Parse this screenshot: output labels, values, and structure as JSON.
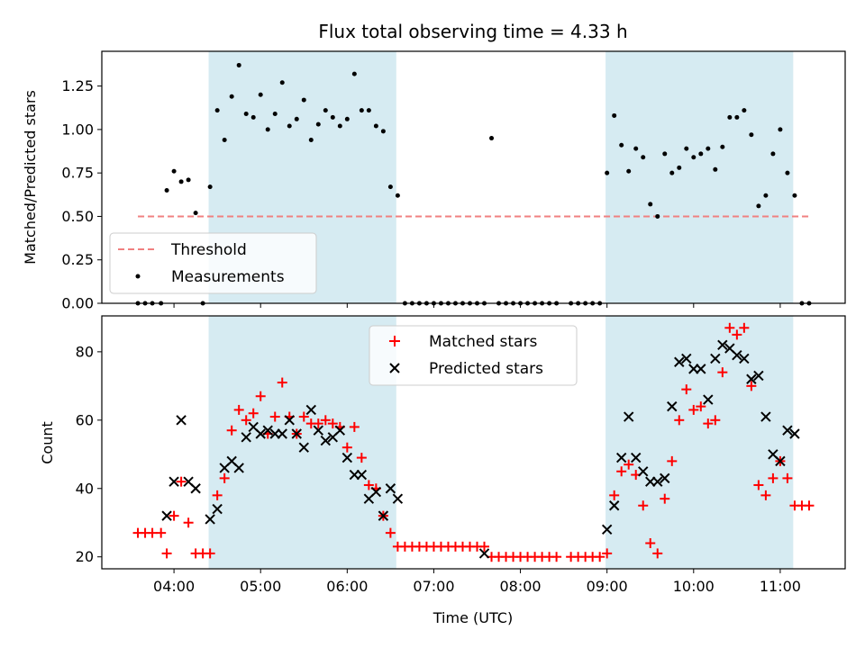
{
  "chart_data": [
    {
      "type": "scatter",
      "title": "Flux total observing time = 4.33 h",
      "xlabel": "",
      "ylabel": "Matched/Predicted stars",
      "ylim": [
        0,
        1.45
      ],
      "yticks": [
        "0.00",
        "0.25",
        "0.50",
        "0.75",
        "1.00",
        "1.25"
      ],
      "shaded_intervals": [
        [
          "04:24",
          "06:34"
        ],
        [
          "08:59",
          "11:09"
        ]
      ],
      "threshold": {
        "name": "Threshold",
        "value": 0.5,
        "x_range": [
          "03:35",
          "11:20"
        ],
        "color": "#f08080",
        "style": "dashed"
      },
      "legend": {
        "entries": [
          "Threshold",
          "Measurements"
        ],
        "location": "lower-left"
      },
      "series": [
        {
          "name": "Measurements",
          "color": "#000000",
          "points": [
            [
              "03:35",
              0
            ],
            [
              "03:40",
              0
            ],
            [
              "03:45",
              0
            ],
            [
              "03:51",
              0
            ],
            [
              "03:55",
              0.65
            ],
            [
              "04:00",
              0.76
            ],
            [
              "04:05",
              0.7
            ],
            [
              "04:10",
              0.71
            ],
            [
              "04:15",
              0.52
            ],
            [
              "04:20",
              0
            ],
            [
              "04:25",
              0.67
            ],
            [
              "04:30",
              1.11
            ],
            [
              "04:35",
              0.94
            ],
            [
              "04:40",
              1.19
            ],
            [
              "04:45",
              1.37
            ],
            [
              "04:50",
              1.09
            ],
            [
              "04:55",
              1.07
            ],
            [
              "05:00",
              1.2
            ],
            [
              "05:05",
              1.0
            ],
            [
              "05:10",
              1.09
            ],
            [
              "05:15",
              1.27
            ],
            [
              "05:20",
              1.02
            ],
            [
              "05:25",
              1.06
            ],
            [
              "05:30",
              1.17
            ],
            [
              "05:35",
              0.94
            ],
            [
              "05:40",
              1.03
            ],
            [
              "05:45",
              1.11
            ],
            [
              "05:50",
              1.07
            ],
            [
              "05:55",
              1.02
            ],
            [
              "06:00",
              1.06
            ],
            [
              "06:05",
              1.32
            ],
            [
              "06:10",
              1.11
            ],
            [
              "06:15",
              1.11
            ],
            [
              "06:20",
              1.02
            ],
            [
              "06:25",
              0.99
            ],
            [
              "06:30",
              0.67
            ],
            [
              "06:35",
              0.62
            ],
            [
              "06:40",
              0
            ],
            [
              "06:45",
              0
            ],
            [
              "06:50",
              0
            ],
            [
              "06:55",
              0
            ],
            [
              "07:00",
              0
            ],
            [
              "07:05",
              0
            ],
            [
              "07:10",
              0
            ],
            [
              "07:15",
              0
            ],
            [
              "07:20",
              0
            ],
            [
              "07:25",
              0
            ],
            [
              "07:30",
              0
            ],
            [
              "07:35",
              0
            ],
            [
              "07:40",
              0.95
            ],
            [
              "07:45",
              0
            ],
            [
              "07:50",
              0
            ],
            [
              "07:55",
              0
            ],
            [
              "08:00",
              0
            ],
            [
              "08:05",
              0
            ],
            [
              "08:10",
              0
            ],
            [
              "08:15",
              0
            ],
            [
              "08:20",
              0
            ],
            [
              "08:25",
              0
            ],
            [
              "08:35",
              0
            ],
            [
              "08:40",
              0
            ],
            [
              "08:45",
              0
            ],
            [
              "08:50",
              0
            ],
            [
              "08:55",
              0
            ],
            [
              "09:00",
              0.75
            ],
            [
              "09:05",
              1.08
            ],
            [
              "09:10",
              0.91
            ],
            [
              "09:15",
              0.76
            ],
            [
              "09:20",
              0.89
            ],
            [
              "09:25",
              0.84
            ],
            [
              "09:30",
              0.57
            ],
            [
              "09:35",
              0.5
            ],
            [
              "09:40",
              0.86
            ],
            [
              "09:45",
              0.75
            ],
            [
              "09:50",
              0.78
            ],
            [
              "09:55",
              0.89
            ],
            [
              "10:00",
              0.84
            ],
            [
              "10:05",
              0.86
            ],
            [
              "10:10",
              0.89
            ],
            [
              "10:15",
              0.77
            ],
            [
              "10:20",
              0.9
            ],
            [
              "10:25",
              1.07
            ],
            [
              "10:30",
              1.07
            ],
            [
              "10:35",
              1.11
            ],
            [
              "10:40",
              0.97
            ],
            [
              "10:45",
              0.56
            ],
            [
              "10:50",
              0.62
            ],
            [
              "10:55",
              0.86
            ],
            [
              "11:00",
              1.0
            ],
            [
              "11:05",
              0.75
            ],
            [
              "11:10",
              0.62
            ],
            [
              "11:15",
              0
            ],
            [
              "11:20",
              0
            ]
          ]
        }
      ]
    },
    {
      "type": "scatter",
      "title": "",
      "xlabel": "Time (UTC)",
      "ylabel": "Count",
      "ylim": [
        16.5,
        90.5
      ],
      "yticks": [
        "20",
        "40",
        "60",
        "80"
      ],
      "xticks": [
        "04:00",
        "05:00",
        "06:00",
        "07:00",
        "08:00",
        "09:00",
        "10:00",
        "11:00"
      ],
      "xlim": [
        "03:10",
        "11:45"
      ],
      "shaded_intervals": [
        [
          "04:24",
          "06:34"
        ],
        [
          "08:59",
          "11:09"
        ]
      ],
      "legend": {
        "entries": [
          "Matched stars",
          "Predicted stars"
        ],
        "location": "upper-center"
      },
      "series": [
        {
          "name": "Matched stars",
          "marker": "plus",
          "color": "#ff0000",
          "points": [
            [
              "03:35",
              27
            ],
            [
              "03:40",
              27
            ],
            [
              "03:45",
              27
            ],
            [
              "03:51",
              27
            ],
            [
              "03:55",
              21
            ],
            [
              "04:00",
              32
            ],
            [
              "04:05",
              42
            ],
            [
              "04:10",
              30
            ],
            [
              "04:15",
              21
            ],
            [
              "04:20",
              21
            ],
            [
              "04:25",
              21
            ],
            [
              "04:30",
              38
            ],
            [
              "04:35",
              43
            ],
            [
              "04:40",
              57
            ],
            [
              "04:45",
              63
            ],
            [
              "04:50",
              60
            ],
            [
              "04:55",
              62
            ],
            [
              "05:00",
              67
            ],
            [
              "05:05",
              56
            ],
            [
              "05:10",
              61
            ],
            [
              "05:15",
              71
            ],
            [
              "05:20",
              61
            ],
            [
              "05:25",
              56
            ],
            [
              "05:30",
              61
            ],
            [
              "05:35",
              59
            ],
            [
              "05:40",
              59
            ],
            [
              "05:45",
              60
            ],
            [
              "05:50",
              59
            ],
            [
              "05:55",
              58
            ],
            [
              "06:00",
              52
            ],
            [
              "06:05",
              58
            ],
            [
              "06:10",
              49
            ],
            [
              "06:15",
              41
            ],
            [
              "06:20",
              40
            ],
            [
              "06:25",
              32
            ],
            [
              "06:30",
              27
            ],
            [
              "06:35",
              23
            ],
            [
              "06:40",
              23
            ],
            [
              "06:45",
              23
            ],
            [
              "06:50",
              23
            ],
            [
              "06:55",
              23
            ],
            [
              "07:00",
              23
            ],
            [
              "07:05",
              23
            ],
            [
              "07:10",
              23
            ],
            [
              "07:15",
              23
            ],
            [
              "07:20",
              23
            ],
            [
              "07:25",
              23
            ],
            [
              "07:30",
              23
            ],
            [
              "07:35",
              23
            ],
            [
              "07:40",
              20
            ],
            [
              "07:45",
              20
            ],
            [
              "07:50",
              20
            ],
            [
              "07:55",
              20
            ],
            [
              "08:00",
              20
            ],
            [
              "08:05",
              20
            ],
            [
              "08:10",
              20
            ],
            [
              "08:15",
              20
            ],
            [
              "08:20",
              20
            ],
            [
              "08:25",
              20
            ],
            [
              "08:35",
              20
            ],
            [
              "08:40",
              20
            ],
            [
              "08:45",
              20
            ],
            [
              "08:50",
              20
            ],
            [
              "08:55",
              20
            ],
            [
              "09:00",
              21
            ],
            [
              "09:05",
              38
            ],
            [
              "09:10",
              45
            ],
            [
              "09:15",
              47
            ],
            [
              "09:20",
              44
            ],
            [
              "09:25",
              35
            ],
            [
              "09:30",
              24
            ],
            [
              "09:35",
              21
            ],
            [
              "09:40",
              37
            ],
            [
              "09:45",
              48
            ],
            [
              "09:50",
              60
            ],
            [
              "09:55",
              69
            ],
            [
              "10:00",
              63
            ],
            [
              "10:05",
              64
            ],
            [
              "10:10",
              59
            ],
            [
              "10:15",
              60
            ],
            [
              "10:20",
              74
            ],
            [
              "10:25",
              87
            ],
            [
              "10:30",
              85
            ],
            [
              "10:35",
              87
            ],
            [
              "10:40",
              70
            ],
            [
              "10:45",
              41
            ],
            [
              "10:50",
              38
            ],
            [
              "10:55",
              43
            ],
            [
              "11:00",
              48
            ],
            [
              "11:05",
              43
            ],
            [
              "11:10",
              35
            ],
            [
              "11:15",
              35
            ],
            [
              "11:20",
              35
            ]
          ]
        },
        {
          "name": "Predicted stars",
          "marker": "x",
          "color": "#000000",
          "points": [
            [
              "03:55",
              32
            ],
            [
              "04:00",
              42
            ],
            [
              "04:05",
              60
            ],
            [
              "04:10",
              42
            ],
            [
              "04:15",
              40
            ],
            [
              "04:25",
              31
            ],
            [
              "04:30",
              34
            ],
            [
              "04:35",
              46
            ],
            [
              "04:40",
              48
            ],
            [
              "04:45",
              46
            ],
            [
              "04:50",
              55
            ],
            [
              "04:55",
              58
            ],
            [
              "05:00",
              56
            ],
            [
              "05:05",
              57
            ],
            [
              "05:10",
              56
            ],
            [
              "05:15",
              56
            ],
            [
              "05:20",
              60
            ],
            [
              "05:25",
              56
            ],
            [
              "05:30",
              52
            ],
            [
              "05:35",
              63
            ],
            [
              "05:40",
              57
            ],
            [
              "05:45",
              54
            ],
            [
              "05:50",
              55
            ],
            [
              "05:55",
              57
            ],
            [
              "06:00",
              49
            ],
            [
              "06:05",
              44
            ],
            [
              "06:10",
              44
            ],
            [
              "06:15",
              37
            ],
            [
              "06:20",
              39
            ],
            [
              "06:25",
              32
            ],
            [
              "06:30",
              40
            ],
            [
              "06:35",
              37
            ],
            [
              "07:35",
              21
            ],
            [
              "09:00",
              28
            ],
            [
              "09:05",
              35
            ],
            [
              "09:10",
              49
            ],
            [
              "09:15",
              61
            ],
            [
              "09:20",
              49
            ],
            [
              "09:25",
              45
            ],
            [
              "09:30",
              42
            ],
            [
              "09:35",
              42
            ],
            [
              "09:40",
              43
            ],
            [
              "09:45",
              64
            ],
            [
              "09:50",
              77
            ],
            [
              "09:55",
              78
            ],
            [
              "10:00",
              75
            ],
            [
              "10:05",
              75
            ],
            [
              "10:10",
              66
            ],
            [
              "10:15",
              78
            ],
            [
              "10:20",
              82
            ],
            [
              "10:25",
              81
            ],
            [
              "10:30",
              79
            ],
            [
              "10:35",
              78
            ],
            [
              "10:40",
              72
            ],
            [
              "10:45",
              73
            ],
            [
              "10:50",
              61
            ],
            [
              "10:55",
              50
            ],
            [
              "11:00",
              48
            ],
            [
              "11:05",
              57
            ],
            [
              "11:10",
              56
            ]
          ]
        }
      ]
    }
  ],
  "colors": {
    "shade": "#add8e6",
    "threshold": "#f08080",
    "matched": "#ff0000",
    "predicted": "#000000"
  }
}
